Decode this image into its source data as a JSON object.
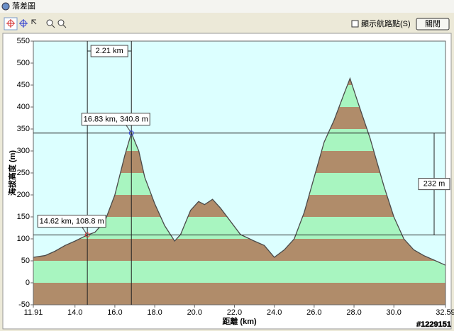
{
  "window": {
    "title": "落差圖",
    "checkbox_label": "顯示航路點(S)",
    "close_button": "關閉"
  },
  "chart_data": {
    "type": "area",
    "x": [
      11.91,
      12.5,
      13.0,
      13.5,
      14.0,
      14.62,
      15.0,
      15.5,
      16.0,
      16.5,
      16.83,
      17.2,
      17.5,
      18.0,
      18.5,
      19.0,
      19.3,
      19.8,
      20.2,
      20.5,
      20.9,
      21.3,
      21.8,
      22.3,
      23.0,
      23.5,
      24.0,
      24.5,
      25.0,
      25.5,
      26.0,
      26.5,
      27.0,
      27.5,
      27.8,
      28.2,
      28.8,
      29.5,
      30.0,
      30.5,
      31.0,
      31.5,
      32.0,
      32.59
    ],
    "series": [
      {
        "values": [
          58,
          62,
          72,
          85,
          95,
          108.8,
          115,
          140,
          200,
          290,
          340.8,
          300,
          240,
          180,
          130,
          95,
          110,
          165,
          185,
          178,
          190,
          170,
          140,
          110,
          95,
          85,
          58,
          75,
          100,
          160,
          240,
          320,
          370,
          430,
          465,
          410,
          330,
          220,
          150,
          100,
          75,
          62,
          52,
          40
        ],
        "color": "#4a4a4a"
      }
    ],
    "xlabel": "距離 (km)",
    "ylabel": "海拔高度 (m)",
    "xlim": [
      11.91,
      32.59
    ],
    "xticks": [
      11.91,
      {
        "value": 14,
        "label": "14.0"
      },
      {
        "value": 16,
        "label": "16.0"
      },
      {
        "value": 18,
        "label": "18.0"
      },
      {
        "value": 20,
        "label": "20.0"
      },
      {
        "value": 22,
        "label": "22.0"
      },
      {
        "value": 24,
        "label": "24.0"
      },
      {
        "value": 26,
        "label": "26.0"
      },
      {
        "value": 28,
        "label": "28.0"
      },
      {
        "value": 30,
        "label": "30.0"
      },
      32.59
    ],
    "ylim": [
      -50,
      550
    ],
    "yticks": [
      -50,
      0,
      50,
      100,
      150,
      200,
      250,
      300,
      350,
      400,
      450,
      500,
      550
    ],
    "band_colors": [
      "#b08c6a",
      "#a8f5c0"
    ],
    "background": "#dcffff",
    "cursors": [
      {
        "x": 14.62,
        "y": 108.8,
        "label": "14.62 km, 108.8 m",
        "color": "#e03030"
      },
      {
        "x": 16.83,
        "y": 340.8,
        "label": "16.83 km, 340.8 m",
        "color": "#3040e0"
      }
    ],
    "distance_label": "2.21 km",
    "height_label": "232 m"
  },
  "watermark": "#1229151"
}
